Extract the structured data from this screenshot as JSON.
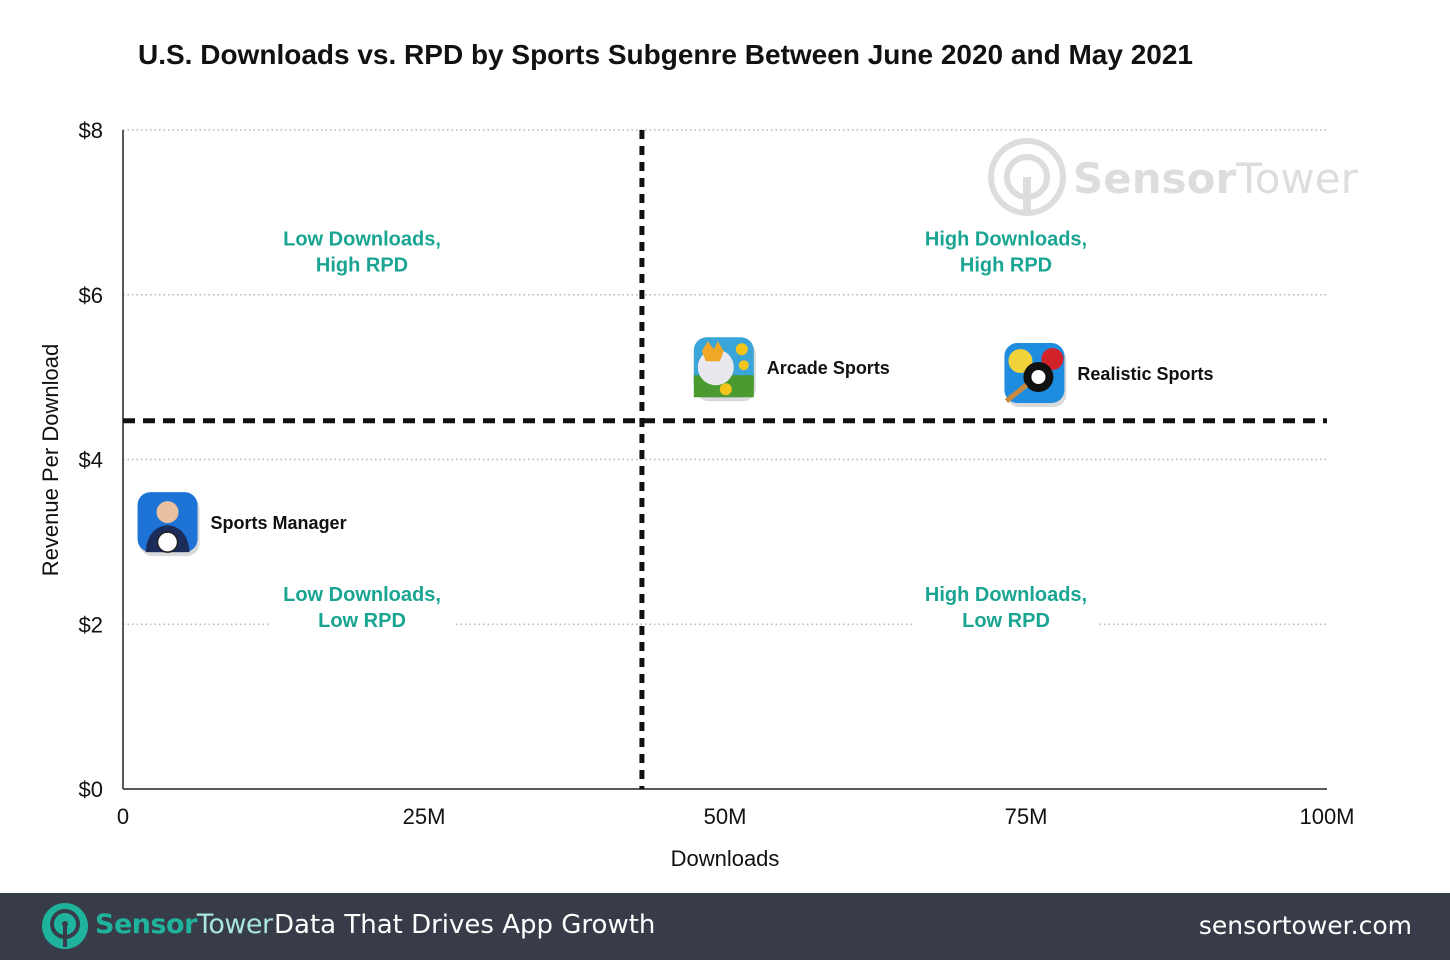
{
  "chart_data": {
    "type": "scatter",
    "title": "U.S. Downloads vs. RPD by Sports Subgenre Between June 2020 and May 2021",
    "xlabel": "Downloads",
    "ylabel": "Revenue Per Download",
    "xlim": [
      0,
      100
    ],
    "ylim": [
      0,
      8
    ],
    "x_unit": "M downloads",
    "y_unit": "USD",
    "x_ticks": [
      0,
      25,
      50,
      75,
      100
    ],
    "x_tick_labels": [
      "0",
      "25M",
      "50M",
      "75M",
      "100M"
    ],
    "y_ticks": [
      0,
      2,
      4,
      6,
      8
    ],
    "y_tick_labels": [
      "$0",
      "$2",
      "$4",
      "$6",
      "$8"
    ],
    "grid": "horizontal dotted",
    "divider_x": 43.1,
    "divider_y": 4.47,
    "points": [
      {
        "name": "Sports Manager",
        "x": 3.7,
        "y": 3.24,
        "icon": "soccer-manager-app-icon"
      },
      {
        "name": "Arcade Sports",
        "x": 49.9,
        "y": 5.12,
        "icon": "golf-clash-app-icon"
      },
      {
        "name": "Realistic Sports",
        "x": 75.7,
        "y": 5.05,
        "icon": "8-ball-pool-app-icon"
      }
    ],
    "quadrants": {
      "top_left": [
        "Low Downloads,",
        "High RPD"
      ],
      "top_right": [
        "High Downloads,",
        "High RPD"
      ],
      "bottom_left": [
        "Low Downloads,",
        "Low RPD"
      ],
      "bottom_right": [
        "High Downloads,",
        "Low RPD"
      ]
    },
    "colors": {
      "quadrant_label": "#1aa592",
      "divider": "#111111",
      "grid": "#b5b5b5"
    },
    "watermark": "SensorTower"
  },
  "footer": {
    "brand_sensor": "Sensor",
    "brand_tower": "Tower",
    "tagline": "Data That Drives App Growth",
    "url": "sensortower.com",
    "background": "#383c48"
  }
}
